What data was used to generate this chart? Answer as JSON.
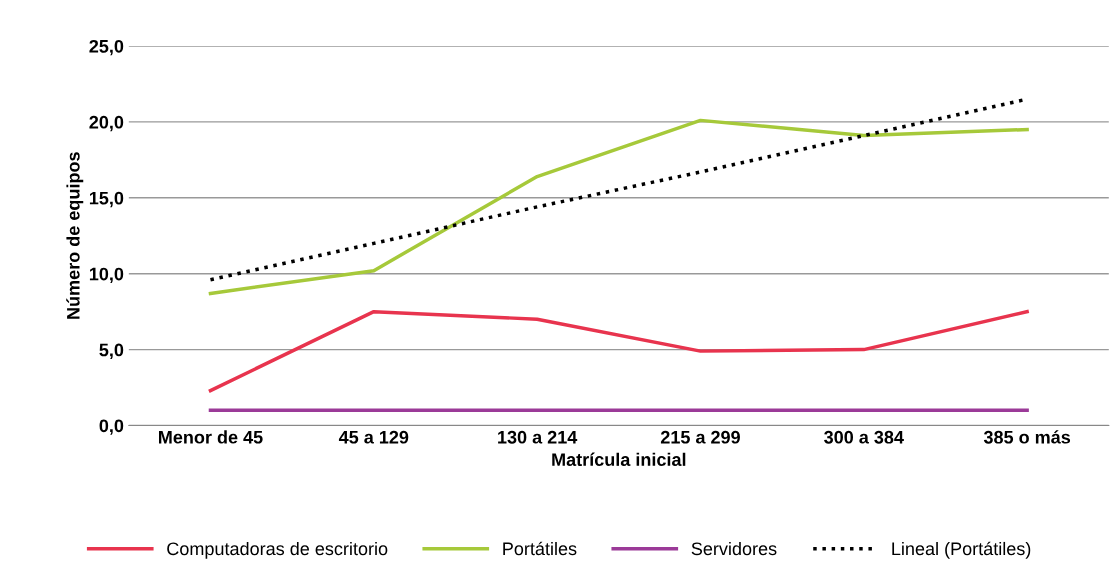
{
  "chart_data": {
    "type": "line",
    "xlabel": "Matrícula inicial",
    "ylabel": "Número de equipos",
    "categories": [
      "Menor de 45",
      "45 a 129",
      "130 a 214",
      "215 a 299",
      "300 a 384",
      "385 o más"
    ],
    "series": [
      {
        "name": "Computadoras de escritorio",
        "color": "#e8344e",
        "values": [
          2.3,
          7.5,
          7.0,
          4.9,
          5.0,
          7.5
        ]
      },
      {
        "name": "Portátiles",
        "color": "#a6c93a",
        "values": [
          8.7,
          10.2,
          16.4,
          20.1,
          19.1,
          19.5
        ]
      },
      {
        "name": "Servidores",
        "color": "#9b3a98",
        "values": [
          1.0,
          1.0,
          1.0,
          1.0,
          1.0,
          1.0
        ]
      },
      {
        "name": "Lineal (Portátiles)",
        "color": "#000000",
        "line_style": "dotted",
        "values": [
          9.6,
          12.0,
          14.4,
          16.7,
          19.1,
          21.5
        ]
      }
    ],
    "ylim": [
      0,
      25
    ],
    "yticks": [
      {
        "value": 0,
        "label": "0,0"
      },
      {
        "value": 5,
        "label": "5,0"
      },
      {
        "value": 10,
        "label": "10,0"
      },
      {
        "value": 15,
        "label": "15,0"
      },
      {
        "value": 20,
        "label": "20,0"
      },
      {
        "value": 25,
        "label": "25,0"
      }
    ],
    "grid": "y",
    "legend": "bottom",
    "marker": "none",
    "line_style": "solid"
  }
}
